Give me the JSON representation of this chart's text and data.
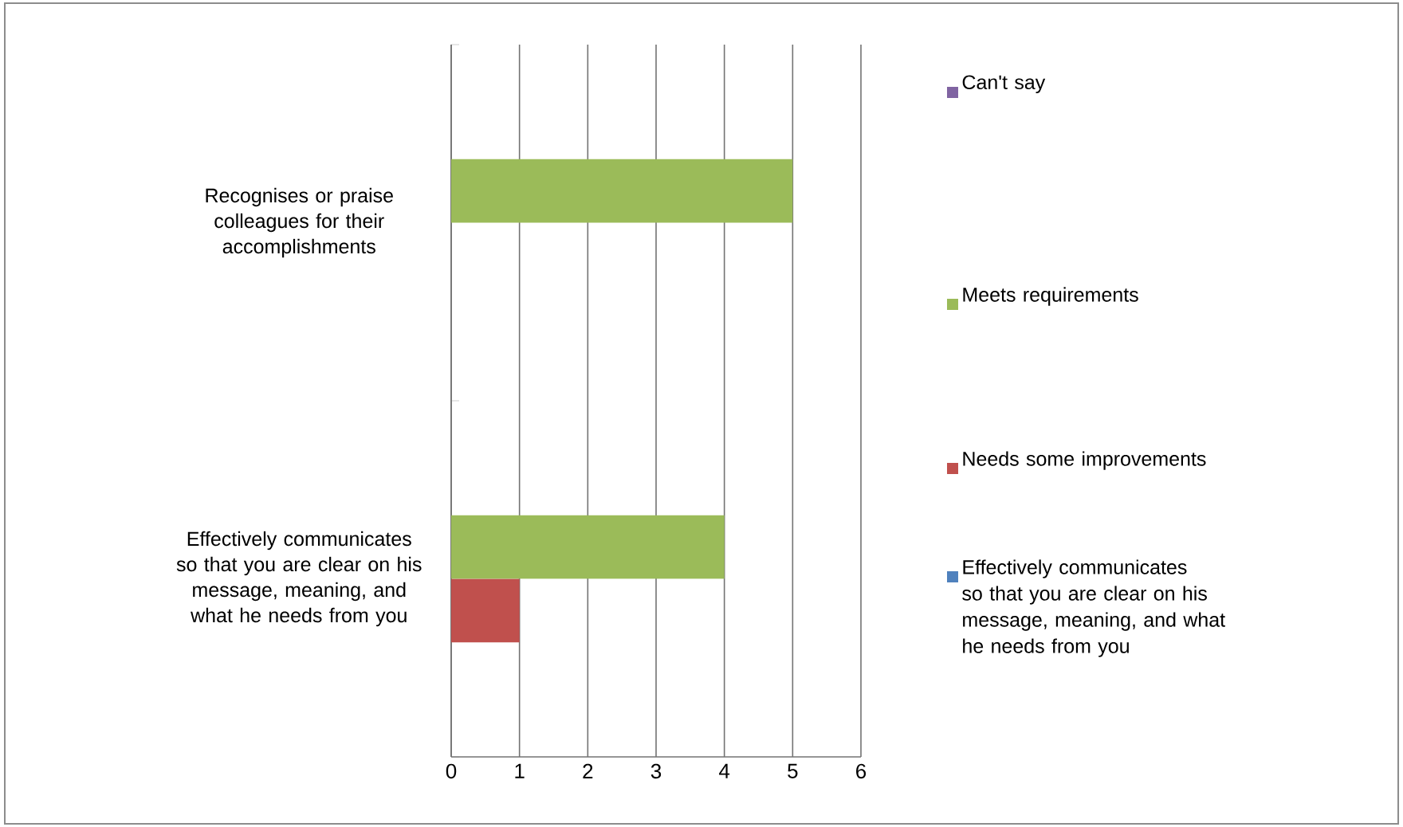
{
  "chart_data": {
    "type": "bar",
    "orientation": "horizontal",
    "categories": [
      "Recognises or praise colleagues for their accomplishments",
      "Effectively communicates so that you are clear on his message, meaning, and what he needs from you"
    ],
    "series": [
      {
        "name": "Effectively communicates so that you are clear on his message, meaning, and what he needs from you",
        "color": "#4f81bd",
        "values": [
          null,
          null
        ]
      },
      {
        "name": "Needs some improvements",
        "color": "#c0504d",
        "values": [
          null,
          1
        ]
      },
      {
        "name": "Meets requirements",
        "color": "#9bbb59",
        "values": [
          5,
          4
        ]
      },
      {
        "name": "Can't say",
        "color": "#8064a2",
        "values": [
          null,
          null
        ]
      }
    ],
    "xlim": [
      0,
      6
    ],
    "xticks": [
      0,
      1,
      2,
      3,
      4,
      5,
      6
    ],
    "grid": "x",
    "legend": "right"
  }
}
